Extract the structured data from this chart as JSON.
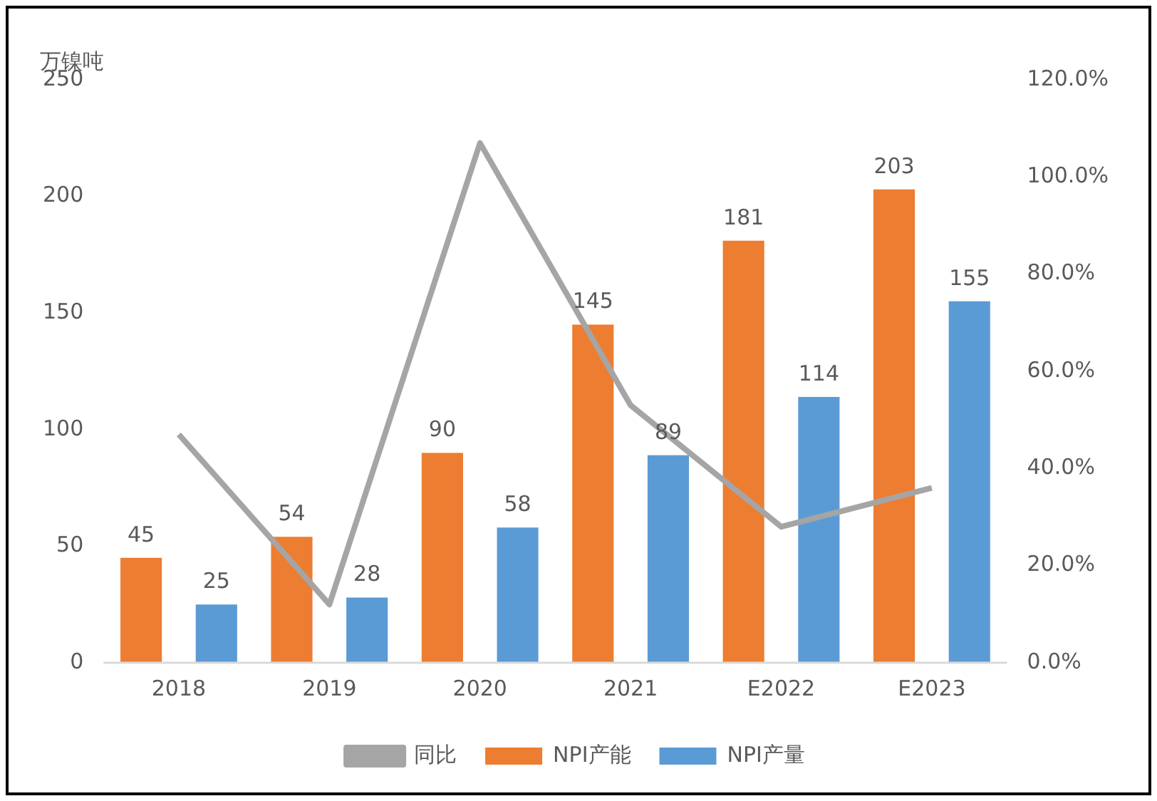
{
  "chart_data": {
    "type": "bar",
    "ylabel": "万镍吨",
    "categories": [
      "2018",
      "2019",
      "2020",
      "2021",
      "E2022",
      "E2023"
    ],
    "series": [
      {
        "name": "NPI产能",
        "color": "#ed7d31",
        "values": [
          45,
          54,
          90,
          145,
          181,
          203
        ]
      },
      {
        "name": "NPI产量",
        "color": "#5b9bd5",
        "values": [
          25,
          28,
          58,
          89,
          114,
          155
        ]
      },
      {
        "name": "同比",
        "type": "line",
        "axis": "y2",
        "color": "#a5a5a5",
        "values": [
          47,
          12,
          107,
          53,
          28,
          36
        ],
        "data_labels": false
      }
    ],
    "data_labels": true,
    "ylim": [
      0,
      250
    ],
    "yticks": [
      0,
      50,
      100,
      150,
      200,
      250
    ],
    "y2lim": [
      0,
      120
    ],
    "y2ticks": [
      {
        "value": 0,
        "label": "0.0%"
      },
      {
        "value": 20,
        "label": "20.0%"
      },
      {
        "value": 40,
        "label": "40.0%"
      },
      {
        "value": 60,
        "label": "60.0%"
      },
      {
        "value": 80,
        "label": "80.0%"
      },
      {
        "value": 100,
        "label": "100.0%"
      },
      {
        "value": 120,
        "label": "120.0%"
      }
    ],
    "grid": false,
    "legend": "bottom",
    "marker": "none"
  }
}
